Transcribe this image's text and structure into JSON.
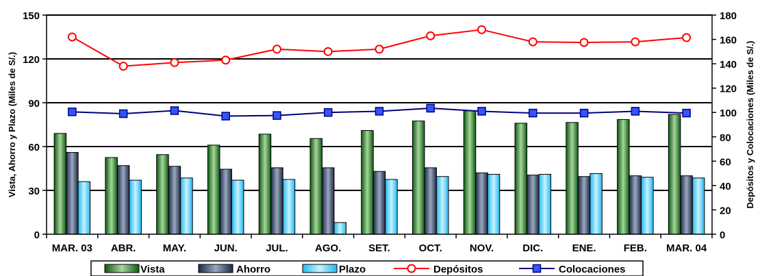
{
  "chart_data": {
    "type": "bar",
    "title": "",
    "categories": [
      "MAR. 03",
      "ABR.",
      "MAY.",
      "JUN.",
      "JUL.",
      "AGO.",
      "SET.",
      "OCT.",
      "NOV.",
      "DIC.",
      "ENE.",
      "FEB.",
      "MAR. 04"
    ],
    "ylabel_left": "Vista, Ahorro y Plazo (Miles de S/.)",
    "ylabel_right": "Depósitos y Colocaciones (Miles de S/.)",
    "ylim_left": [
      0,
      150
    ],
    "ylim_right": [
      0,
      180
    ],
    "yticks_left": [
      0,
      30,
      60,
      90,
      120,
      150
    ],
    "yticks_right": [
      0,
      20,
      40,
      60,
      80,
      100,
      120,
      140,
      160,
      180
    ],
    "grid": true,
    "legend_position": "bottom",
    "series": [
      {
        "name": "Vista",
        "type": "bar",
        "axis": "left",
        "color": "#2e7d32",
        "values": [
          69,
          52.5,
          54.5,
          61,
          68.5,
          65.5,
          71,
          77.5,
          84.5,
          76,
          76.5,
          78.5,
          82
        ]
      },
      {
        "name": "Ahorro",
        "type": "bar",
        "axis": "left",
        "color": "#3a4a6b",
        "values": [
          56,
          47,
          46.5,
          44.5,
          45.5,
          45.5,
          43,
          45.5,
          42,
          40.5,
          39.5,
          40,
          40
        ]
      },
      {
        "name": "Plazo",
        "type": "bar",
        "axis": "left",
        "color": "#33ccff",
        "values": [
          36,
          37,
          38.5,
          37,
          37.5,
          8,
          37.5,
          39.5,
          41,
          41,
          41.5,
          39,
          38.5
        ]
      },
      {
        "name": "Depósitos",
        "type": "line",
        "axis": "right",
        "color": "#ff0000",
        "values": [
          162,
          138,
          141,
          143,
          152,
          150,
          152,
          163,
          168,
          158,
          157.5,
          158,
          161.5
        ]
      },
      {
        "name": "Colocaciones",
        "type": "line",
        "axis": "right",
        "color": "#000080",
        "values": [
          100.5,
          99,
          101.5,
          97,
          97.5,
          100,
          101,
          103.5,
          101,
          99.5,
          99.5,
          101,
          99.5
        ]
      }
    ]
  }
}
